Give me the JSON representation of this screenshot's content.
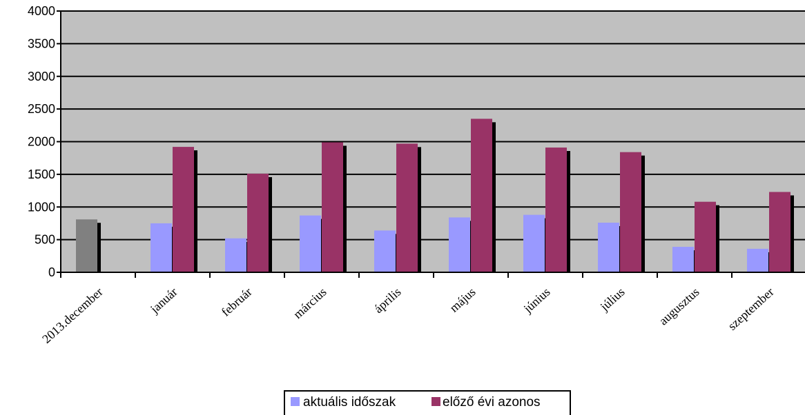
{
  "chart_data": {
    "type": "bar",
    "title": "",
    "xlabel": "",
    "ylabel": "",
    "ylim": [
      0,
      4000
    ],
    "yticks": [
      0,
      500,
      1000,
      1500,
      2000,
      2500,
      3000,
      3500,
      4000
    ],
    "grid": true,
    "legend_position": "bottom",
    "categories": [
      "2013.december",
      "január",
      "február",
      "március",
      "április",
      "május",
      "június",
      "július",
      "augusztus",
      "szeptember"
    ],
    "series": [
      {
        "name": "aktuális időszak",
        "color": "#9999ff",
        "values": [
          null,
          750,
          520,
          870,
          640,
          840,
          880,
          760,
          390,
          360
        ]
      },
      {
        "name": "előző évi azonos",
        "color": "#993366",
        "values": [
          null,
          1920,
          1510,
          1990,
          1970,
          2350,
          1910,
          1840,
          1080,
          1230
        ]
      }
    ],
    "special_bars": [
      {
        "category": "2013.december",
        "value": 810,
        "color": "#808080"
      }
    ],
    "colors": {
      "plot_background": "#c0c0c0",
      "shadow": "#000000"
    }
  }
}
